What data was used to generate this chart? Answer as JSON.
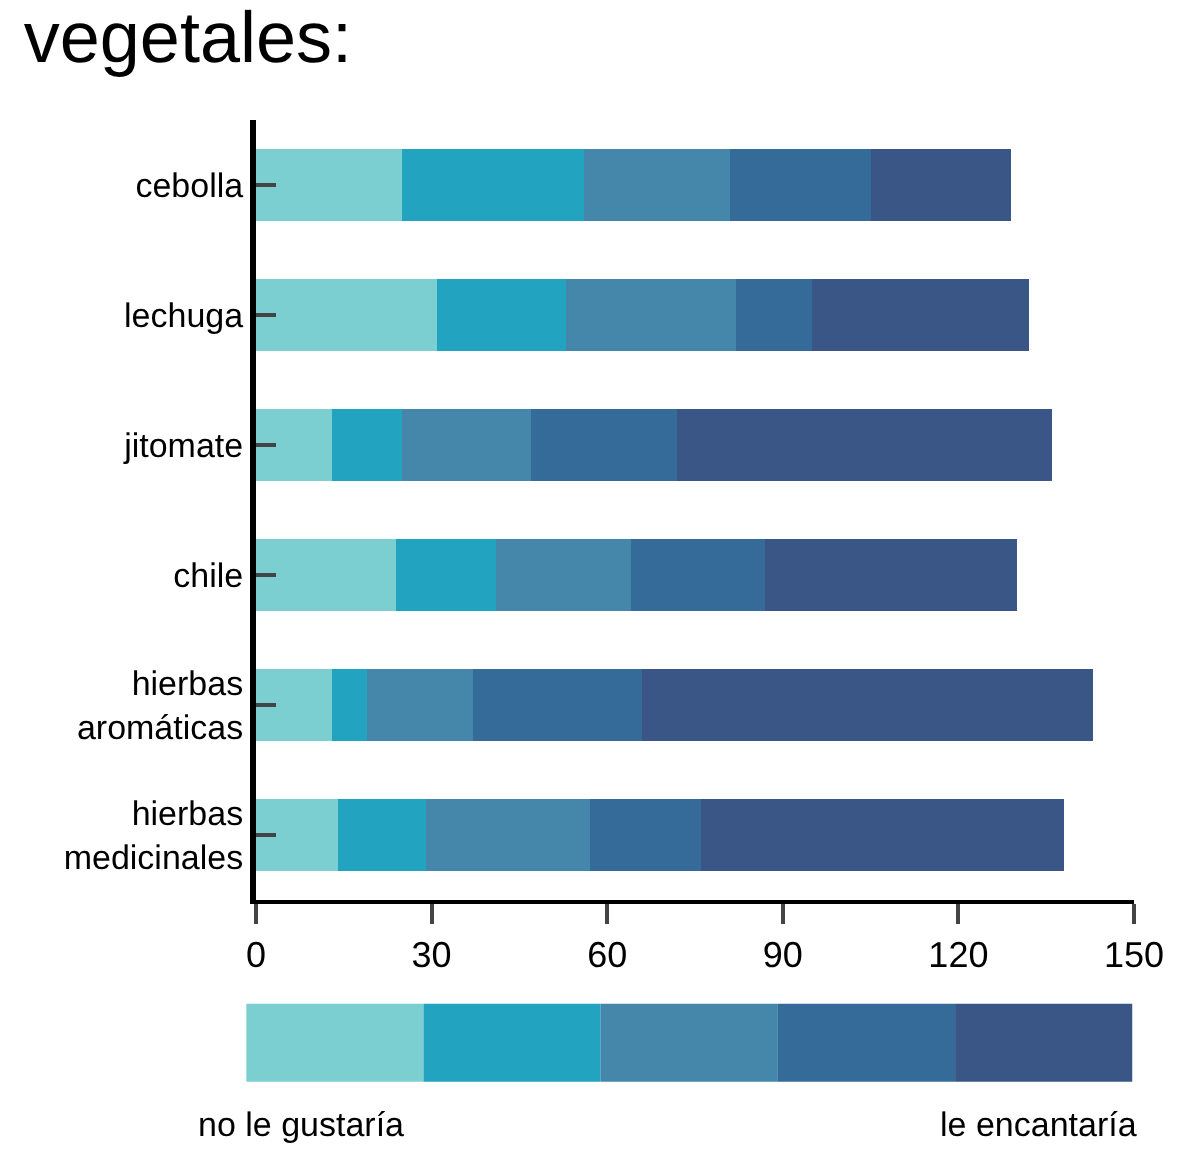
{
  "chart_data": {
    "type": "bar",
    "orientation": "horizontal",
    "stacked": true,
    "title": "vegetales:",
    "categories": [
      "cebolla",
      "lechuga",
      "jitomate",
      "chile",
      "hierbas\naromáticas",
      "hierbas\nmedicinales"
    ],
    "series": [
      {
        "color": "#7bcfd0",
        "values": [
          25,
          31,
          13,
          24,
          13,
          14
        ]
      },
      {
        "color": "#22a3bf",
        "values": [
          31,
          22,
          12,
          17,
          6,
          15
        ]
      },
      {
        "color": "#4487ab",
        "values": [
          25,
          29,
          22,
          23,
          18,
          28
        ]
      },
      {
        "color": "#356b99",
        "values": [
          24,
          13,
          25,
          23,
          29,
          19
        ]
      },
      {
        "color": "#3a5686",
        "values": [
          24,
          37,
          64,
          43,
          77,
          62
        ]
      }
    ],
    "xlim": [
      0,
      150
    ],
    "xticks": [
      0,
      30,
      60,
      90,
      120,
      150
    ],
    "annotations": [
      "no le gustaría",
      "le encantaría"
    ]
  }
}
